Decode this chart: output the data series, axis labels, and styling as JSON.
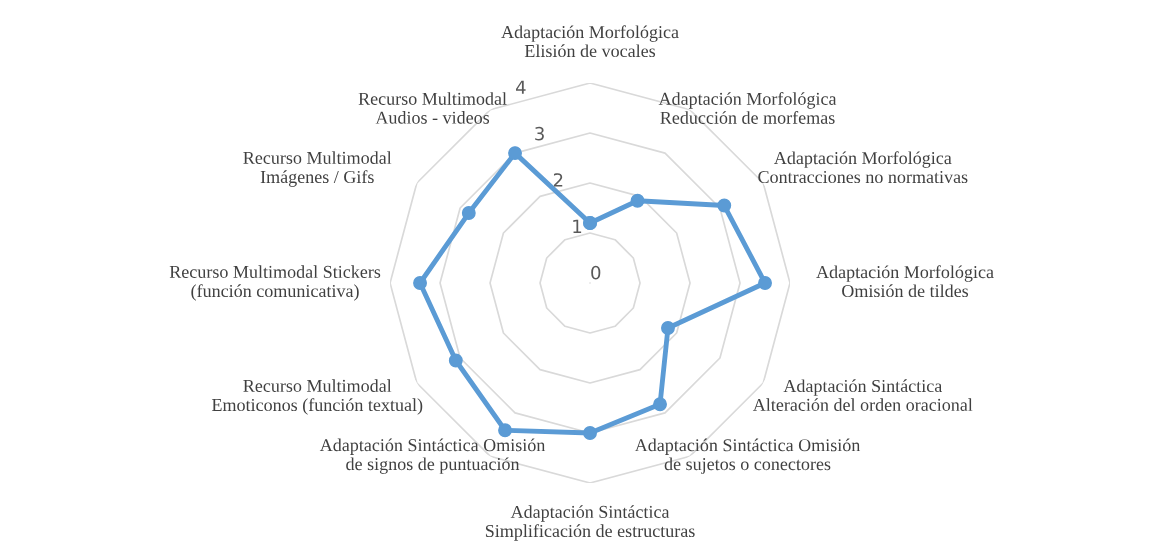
{
  "chart_data": {
    "type": "radar",
    "categories": [
      "Adaptación Morfológica Elisión de vocales",
      "Adaptación Morfológica Reducción de morfemas",
      "Adaptación Morfológica Contracciones no normativas",
      "Adaptación Morfológica Omisión de tildes",
      "Adaptación Sintáctica Alteración del orden oracional",
      "Adaptación Sintáctica Omisión de sujetos o conectores",
      "Adaptación Sintáctica Simplificación de estructuras",
      "Adaptación Sintáctica Omisión de signos de puntuación",
      "Recurso Multimodal Emoticonos (función textual)",
      "Recurso Multimodal Stickers (función comunicativa)",
      "Recurso Multimodal Imágenes / Gifs",
      "Recurso Multimodal Audios - videos"
    ],
    "series": [
      {
        "color": "#5b9bd5",
        "values": [
          1.2,
          1.9,
          3.1,
          3.5,
          1.8,
          2.8,
          3.0,
          3.4,
          3.1,
          3.4,
          2.8,
          3.0
        ]
      }
    ],
    "ylim": [
      0,
      4
    ],
    "yticks": [
      0,
      1,
      2,
      3,
      4
    ],
    "grid": true,
    "marker": "circle",
    "line_style": "solid"
  }
}
